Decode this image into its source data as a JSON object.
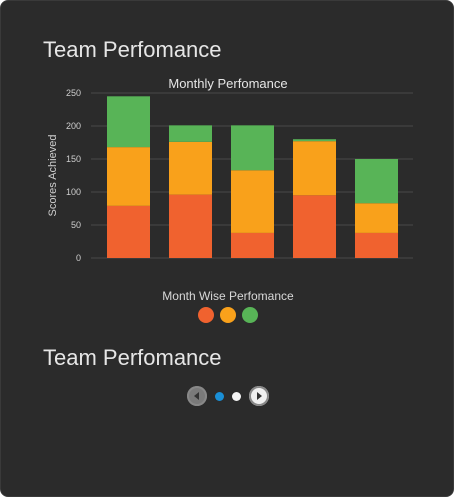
{
  "panel": {
    "title": "Team Perfomance",
    "second_title": "Team Perfomance"
  },
  "chart_data": {
    "type": "bar",
    "stacked": true,
    "title": "Monthly Perfomance",
    "ylabel": "Scores Achieved",
    "xlabel": "Month Wise Perfomance",
    "ylim": [
      0,
      250
    ],
    "yticks": [
      0,
      50,
      100,
      150,
      200,
      250
    ],
    "grid": true,
    "categories": [
      "",
      "",
      "",
      "",
      ""
    ],
    "series": [
      {
        "color": "#f0622f",
        "values": [
          79,
          96,
          38,
          95,
          38
        ]
      },
      {
        "color": "#f9a11b",
        "values": [
          89,
          80,
          95,
          82,
          45
        ]
      },
      {
        "color": "#58b457",
        "values": [
          77,
          25,
          68,
          3,
          67
        ]
      }
    ],
    "legend_placement": "bottom",
    "colors": {
      "axis_text": "#cfcfcf",
      "grid": "#4a4a4a",
      "title": "#e6e6e6"
    }
  },
  "pager": {
    "prev_icon": "chevron-left-icon",
    "next_icon": "chevron-right-icon",
    "dots": [
      {
        "color": "#1a8fd6"
      },
      {
        "color": "#f5f5f5"
      }
    ]
  }
}
